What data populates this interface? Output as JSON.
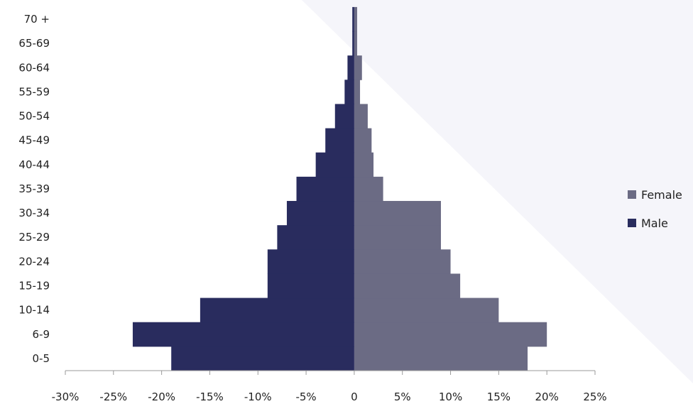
{
  "chart_data": {
    "type": "bar",
    "orientation": "horizontal",
    "stacked_as": "population-pyramid",
    "categories": [
      "0-5",
      "6-9",
      "10-14",
      "15-19",
      "20-24",
      "25-29",
      "30-34",
      "35-39",
      "40-44",
      "45-49",
      "50-54",
      "55-59",
      "60-64",
      "65-69",
      "70 +"
    ],
    "series": [
      {
        "name": "Female",
        "color": "#6b6b84",
        "values": [
          18,
          20,
          15,
          11,
          10,
          9,
          9,
          3,
          2,
          1.8,
          1.4,
          0.6,
          0.8,
          0.3,
          0.3
        ]
      },
      {
        "name": "Male",
        "color": "#292c5e",
        "values": [
          -19,
          -23,
          -16,
          -9,
          -9,
          -8,
          -7,
          -6,
          -4,
          -3,
          -2,
          -1,
          -0.7,
          -0.2,
          -0.2
        ]
      }
    ],
    "xlim": [
      -30,
      25
    ],
    "x_ticks": [
      -30,
      -25,
      -20,
      -15,
      -10,
      -5,
      0,
      5,
      10,
      15,
      20,
      25
    ],
    "x_tick_labels": [
      "-30%",
      "-25%",
      "-20%",
      "-15%",
      "-10%",
      "-5%",
      "0",
      "5%",
      "10%",
      "15%",
      "20%",
      "25%"
    ],
    "title": "",
    "xlabel": "",
    "ylabel": "",
    "grid": false,
    "legend": {
      "placement": "right",
      "items": [
        {
          "label": "Female",
          "color": "#6b6b84"
        },
        {
          "label": "Male",
          "color": "#292c5e"
        }
      ]
    }
  }
}
